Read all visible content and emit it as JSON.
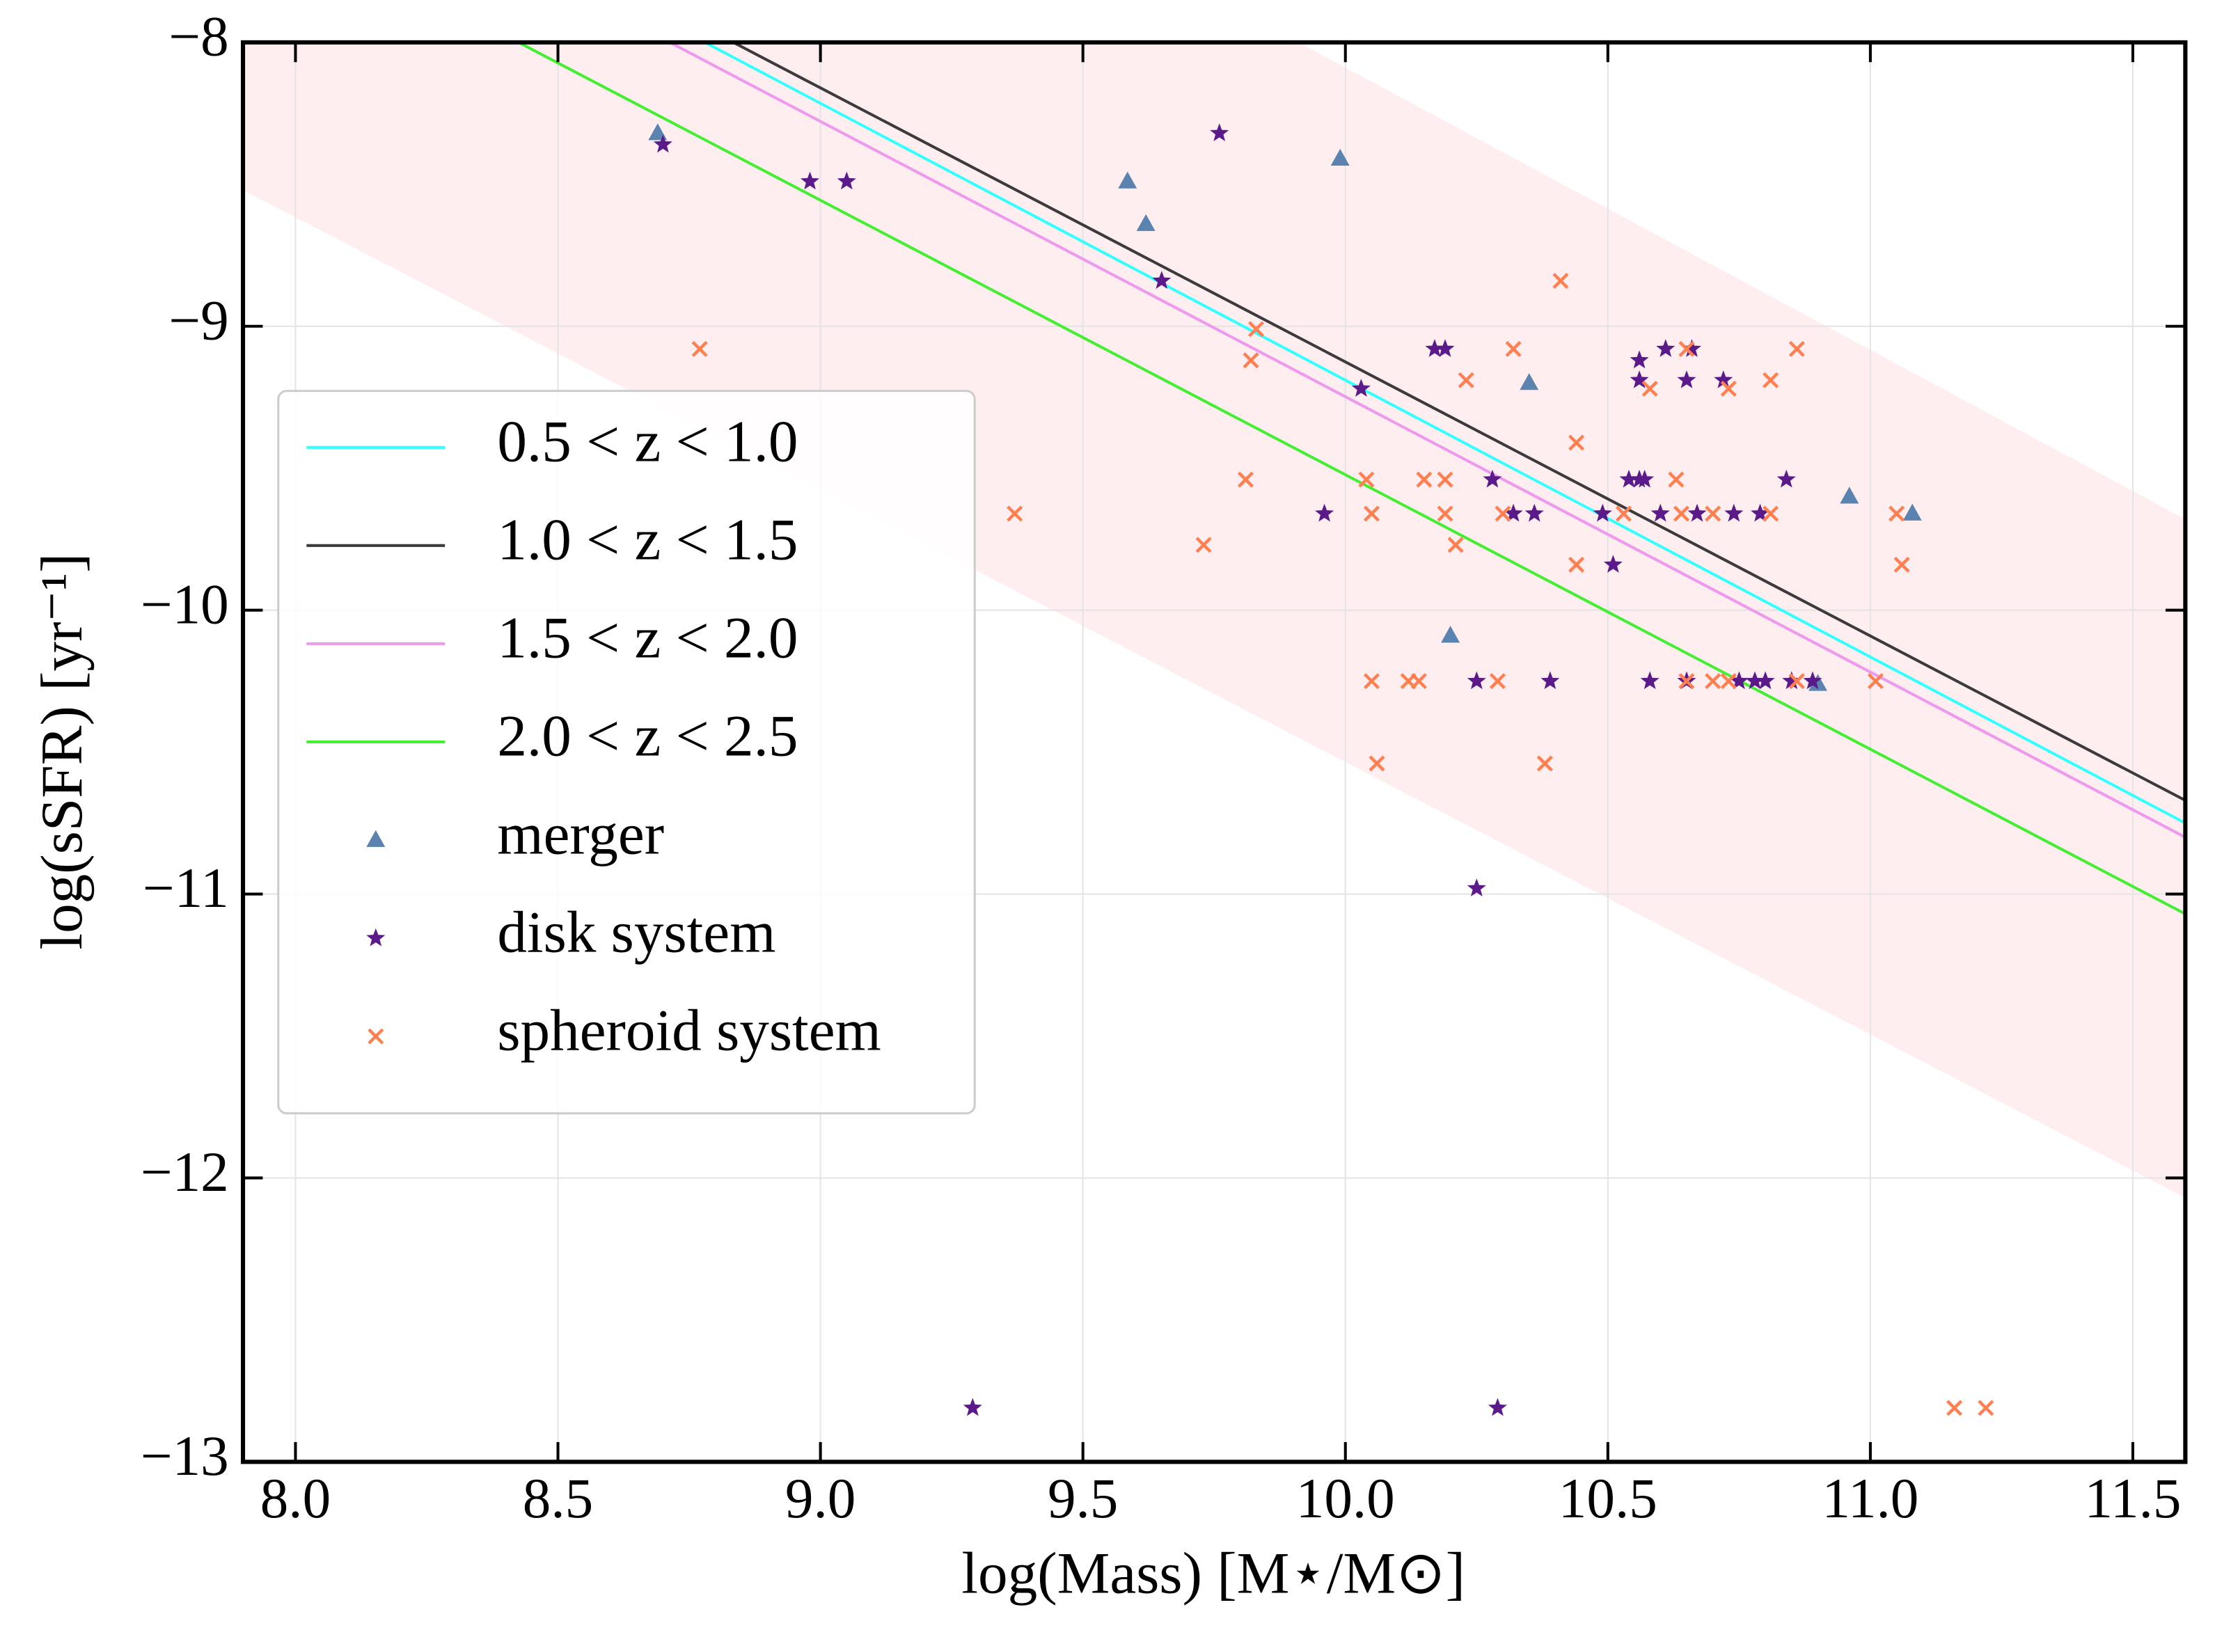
{
  "chart_data": {
    "type": "scatter",
    "xlabel": "log(Mass) [M⋆/M⊙]",
    "ylabel": "log(sSFR) [yr⁻¹]",
    "xlim": [
      7.9,
      11.6
    ],
    "ylim": [
      -13,
      -8
    ],
    "xticks": [
      {
        "value": 8,
        "label": "8.0"
      },
      8.5,
      {
        "value": 9,
        "label": "9.0"
      },
      9.5,
      {
        "value": 10,
        "label": "10.0"
      },
      10.5,
      {
        "value": 11,
        "label": "11.0"
      },
      11.5
    ],
    "yticks": [
      {
        "value": -13,
        "label": "−13"
      },
      {
        "value": -12,
        "label": "−12"
      },
      {
        "value": -11,
        "label": "−11"
      },
      {
        "value": -10,
        "label": "−10"
      },
      {
        "value": -9,
        "label": "−9"
      },
      {
        "value": -8,
        "label": "−8"
      }
    ],
    "grid": true,
    "legend": "center left",
    "band": {
      "color": "#fde2e6",
      "x": [
        7.9,
        11.6
      ],
      "upper": [
        -6.0,
        -9.68
      ],
      "lower": [
        -8.52,
        -12.07
      ]
    },
    "lines": [
      {
        "name": "0.5 < z < 1.0",
        "color": "#33ffff",
        "x": [
          8.78,
          11.6
        ],
        "values": [
          -8,
          -10.75
        ]
      },
      {
        "name": "1.0 < z < 1.5",
        "color": "#3d3a3e",
        "x": [
          8.834,
          11.6
        ],
        "values": [
          -8,
          -10.67
        ]
      },
      {
        "name": "1.5 < z < 2.0",
        "color": "#ee99ee",
        "x": [
          8.713,
          11.6
        ],
        "values": [
          -8,
          -10.8
        ]
      },
      {
        "name": "2.0 < z < 2.5",
        "color": "#44ee33",
        "x": [
          8.425,
          11.6
        ],
        "values": [
          -8,
          -11.07
        ]
      }
    ],
    "series": [
      {
        "name": "merger",
        "color": "#5b83b0",
        "marker": "triangle",
        "x": [
          8.69,
          9.585,
          9.62,
          9.99,
          10.35,
          10.2,
          10.96,
          11.08,
          10.9
        ],
        "values": [
          -8.32,
          -8.49,
          -8.64,
          -8.41,
          -9.2,
          -10.09,
          -9.6,
          -9.66,
          -10.26
        ]
      },
      {
        "name": "disk system",
        "color": "#5a1a8a",
        "marker": "star",
        "x": [
          8.7,
          8.98,
          9.05,
          9.76,
          9.65,
          10.17,
          10.19,
          10.03,
          9.96,
          10.28,
          10.32,
          10.36,
          10.25,
          10.39,
          10.25,
          10.29,
          9.29,
          10.49,
          10.51,
          10.56,
          10.56,
          10.54,
          10.56,
          10.57,
          10.6,
          10.58,
          10.61,
          10.66,
          10.65,
          10.67,
          10.72,
          10.74,
          10.65,
          10.75,
          10.79,
          10.84,
          10.78,
          10.8,
          10.85,
          10.89
        ],
        "values": [
          -8.36,
          -8.49,
          -8.49,
          -8.32,
          -8.84,
          -9.08,
          -9.08,
          -9.22,
          -9.66,
          -9.54,
          -9.66,
          -9.66,
          -10.25,
          -10.25,
          -10.98,
          -12.81,
          -12.81,
          -9.66,
          -9.84,
          -9.12,
          -9.19,
          -9.54,
          -9.54,
          -9.54,
          -9.66,
          -10.25,
          -9.08,
          -9.08,
          -9.19,
          -9.66,
          -9.19,
          -9.66,
          -10.25,
          -10.25,
          -9.66,
          -9.54,
          -10.25,
          -10.25,
          -10.25,
          -10.25
        ]
      },
      {
        "name": "spheroid system",
        "color": "#ff7f50",
        "marker": "x",
        "x": [
          8.77,
          9.37,
          9.73,
          9.81,
          9.82,
          9.83,
          10.04,
          10.05,
          10.05,
          10.06,
          10.12,
          10.14,
          10.15,
          10.19,
          10.19,
          10.21,
          10.23,
          10.29,
          10.3,
          10.32,
          10.41,
          10.44,
          10.44,
          10.38,
          10.53,
          10.58,
          10.63,
          10.64,
          10.65,
          10.7,
          10.65,
          10.7,
          10.73,
          10.73,
          10.81,
          10.81,
          10.86,
          10.86,
          11.06,
          11.01,
          11.05,
          11.16,
          11.22
        ],
        "values": [
          -9.08,
          -9.66,
          -9.77,
          -9.54,
          -9.12,
          -9.01,
          -9.54,
          -9.66,
          -10.25,
          -10.54,
          -10.25,
          -10.25,
          -9.54,
          -9.66,
          -9.54,
          -9.77,
          -9.19,
          -10.25,
          -9.66,
          -9.08,
          -8.84,
          -9.41,
          -9.84,
          -10.54,
          -9.66,
          -9.22,
          -9.54,
          -9.66,
          -9.08,
          -9.66,
          -10.25,
          -10.25,
          -9.22,
          -10.25,
          -9.19,
          -9.66,
          -9.08,
          -10.25,
          -9.84,
          -10.25,
          -9.66,
          -12.81,
          -12.81
        ]
      }
    ]
  }
}
